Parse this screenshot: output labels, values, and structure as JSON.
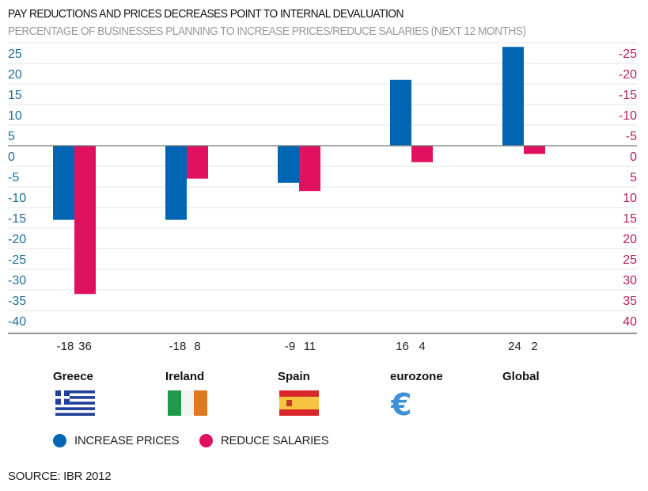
{
  "chart_data": {
    "type": "bar",
    "title": "PAY REDUCTIONS AND PRICES DECREASES POINT TO INTERNAL DEVALUATION",
    "subtitle": "PERCENTAGE OF BUSINESSES PLANNING TO INCREASE PRICES/REDUCE SALARIES (NEXT 12 MONTHS)",
    "categories": [
      "Greece",
      "Ireland",
      "Spain",
      "eurozone",
      "Global"
    ],
    "series": [
      {
        "name": "INCREASE PRICES",
        "values": [
          -18,
          -18,
          -9,
          16,
          24
        ],
        "color": "#0066b3",
        "axis": "left"
      },
      {
        "name": "REDUCE SALARIES",
        "values": [
          36,
          8,
          11,
          4,
          2
        ],
        "color": "#e0115f",
        "axis": "right (inverted)"
      }
    ],
    "data_labels": [
      [
        "-18",
        "36"
      ],
      [
        "-18",
        "8"
      ],
      [
        "-9",
        "11"
      ],
      [
        "16",
        "4"
      ],
      [
        "24",
        "2"
      ]
    ],
    "left_axis": {
      "ticks": [
        "25",
        "20",
        "15",
        "10",
        "5",
        "0",
        "-5",
        "-10",
        "-15",
        "-20",
        "-25",
        "-30",
        "-35",
        "-40"
      ],
      "range": [
        -45,
        25
      ],
      "color": "#1f6e96"
    },
    "right_axis": {
      "ticks": [
        "-25",
        "-20",
        "-15",
        "-10",
        "-5",
        "0",
        "5",
        "10",
        "15",
        "20",
        "25",
        "30",
        "35",
        "40"
      ],
      "range": [
        45,
        -25
      ],
      "color": "#b3245c"
    },
    "grid": true,
    "legend_placement": "bottom-left",
    "category_icons": [
      "greece-flag",
      "ireland-flag",
      "spain-flag",
      "euro-sign",
      ""
    ]
  },
  "legend": {
    "increase": "INCREASE PRICES",
    "reduce": "REDUCE SALARIES"
  },
  "source": "SOURCE: IBR 2012"
}
